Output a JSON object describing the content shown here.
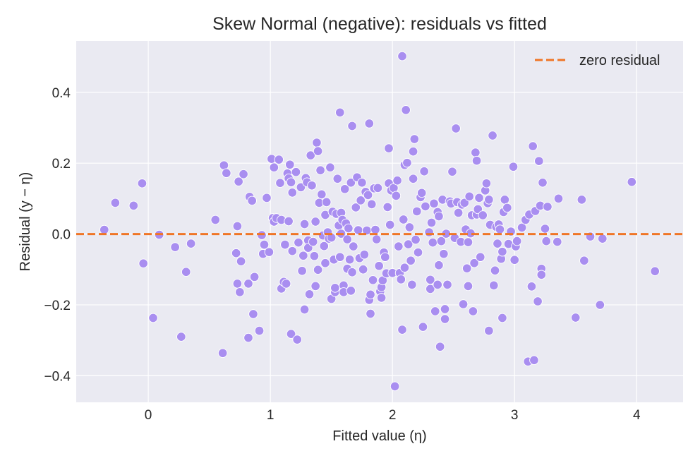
{
  "chart_data": {
    "type": "scatter",
    "title": "Skew Normal (negative): residuals vs fitted",
    "xlabel": "Fitted value (η)",
    "ylabel": "Residual (y − η)",
    "xlim": [
      -0.59,
      4.38
    ],
    "ylim": [
      -0.475,
      0.545
    ],
    "xticks": [
      0,
      1,
      2,
      3,
      4
    ],
    "xtick_labels": [
      "0",
      "1",
      "2",
      "3",
      "4"
    ],
    "yticks": [
      -0.4,
      -0.2,
      0.0,
      0.2,
      0.4
    ],
    "ytick_labels": [
      "−0.4",
      "−0.2",
      "0.0",
      "0.2",
      "0.4"
    ],
    "grid": true,
    "legend_position": "top-right",
    "reference_line": {
      "label": "zero residual",
      "y": 0.0,
      "style": "dashed",
      "color": "#f07526"
    },
    "point_color": "#a98ef0",
    "background_color": "#eaeaf2",
    "series": [
      {
        "points": [
          [
            -0.36,
            0.012
          ],
          [
            -0.27,
            0.088
          ],
          [
            -0.12,
            0.08
          ],
          [
            -0.05,
            0.143
          ],
          [
            -0.04,
            -0.083
          ],
          [
            0.04,
            -0.237
          ],
          [
            0.09,
            -0.002
          ],
          [
            0.22,
            -0.037
          ],
          [
            0.27,
            -0.29
          ],
          [
            0.31,
            -0.107
          ],
          [
            0.35,
            -0.027
          ],
          [
            0.55,
            0.04
          ],
          [
            0.61,
            -0.336
          ],
          [
            0.62,
            0.194
          ],
          [
            0.64,
            0.172
          ],
          [
            0.72,
            -0.054
          ],
          [
            0.73,
            0.022
          ],
          [
            0.73,
            -0.14
          ],
          [
            0.74,
            0.148
          ],
          [
            0.75,
            -0.164
          ],
          [
            0.76,
            -0.077
          ],
          [
            0.78,
            0.169
          ],
          [
            0.82,
            -0.14
          ],
          [
            0.82,
            -0.293
          ],
          [
            0.83,
            0.105
          ],
          [
            0.85,
            0.094
          ],
          [
            0.86,
            -0.226
          ],
          [
            0.87,
            -0.121
          ],
          [
            0.91,
            -0.273
          ],
          [
            0.93,
            -0.003
          ],
          [
            0.94,
            -0.056
          ],
          [
            0.95,
            -0.03
          ],
          [
            0.97,
            0.102
          ],
          [
            0.99,
            -0.051
          ],
          [
            1.01,
            0.212
          ],
          [
            1.02,
            0.045
          ],
          [
            1.03,
            0.035
          ],
          [
            1.03,
            0.188
          ],
          [
            1.05,
            0.045
          ],
          [
            1.07,
            0.21
          ],
          [
            1.08,
            0.144
          ],
          [
            1.09,
            0.04
          ],
          [
            1.09,
            -0.154
          ],
          [
            1.11,
            -0.135
          ],
          [
            1.12,
            -0.03
          ],
          [
            1.13,
            -0.14
          ],
          [
            1.14,
            0.171
          ],
          [
            1.15,
            0.036
          ],
          [
            1.15,
            0.157
          ],
          [
            1.16,
            0.196
          ],
          [
            1.17,
            0.146
          ],
          [
            1.17,
            -0.282
          ],
          [
            1.18,
            0.117
          ],
          [
            1.18,
            -0.048
          ],
          [
            1.21,
            0.175
          ],
          [
            1.22,
            -0.298
          ],
          [
            1.23,
            -0.024
          ],
          [
            1.25,
            0.132
          ],
          [
            1.26,
            -0.104
          ],
          [
            1.27,
            -0.061
          ],
          [
            1.28,
            0.028
          ],
          [
            1.28,
            -0.213
          ],
          [
            1.29,
            0.158
          ],
          [
            1.3,
            0.146
          ],
          [
            1.31,
            -0.018
          ],
          [
            1.31,
            -0.039
          ],
          [
            1.32,
            -0.17
          ],
          [
            1.33,
            0.222
          ],
          [
            1.34,
            0.137
          ],
          [
            1.35,
            -0.022
          ],
          [
            1.36,
            -0.062
          ],
          [
            1.37,
            -0.147
          ],
          [
            1.37,
            0.035
          ],
          [
            1.38,
            0.258
          ],
          [
            1.39,
            -0.101
          ],
          [
            1.39,
            0.234
          ],
          [
            1.4,
            0.088
          ],
          [
            1.41,
            0.18
          ],
          [
            1.42,
            0.112
          ],
          [
            1.43,
            -0.004
          ],
          [
            1.44,
            -0.034
          ],
          [
            1.45,
            -0.082
          ],
          [
            1.45,
            0.054
          ],
          [
            1.46,
            0.09
          ],
          [
            1.47,
            0.005
          ],
          [
            1.48,
            -0.013
          ],
          [
            1.49,
            0.188
          ],
          [
            1.5,
            -0.183
          ],
          [
            1.5,
            -0.01
          ],
          [
            1.51,
            0.063
          ],
          [
            1.52,
            -0.072
          ],
          [
            1.53,
            -0.164
          ],
          [
            1.53,
            -0.152
          ],
          [
            1.54,
            0.057
          ],
          [
            1.55,
            0.156
          ],
          [
            1.56,
            0.024
          ],
          [
            1.57,
            0.343
          ],
          [
            1.57,
            -0.065
          ],
          [
            1.58,
            0.06
          ],
          [
            1.58,
            0.001
          ],
          [
            1.59,
            0.04
          ],
          [
            1.6,
            -0.145
          ],
          [
            1.6,
            -0.164
          ],
          [
            1.61,
            0.127
          ],
          [
            1.62,
            0.03
          ],
          [
            1.63,
            -0.098
          ],
          [
            1.63,
            -0.015
          ],
          [
            1.64,
            0.016
          ],
          [
            1.65,
            -0.072
          ],
          [
            1.66,
            0.145
          ],
          [
            1.66,
            -0.16
          ],
          [
            1.67,
            0.305
          ],
          [
            1.67,
            -0.108
          ],
          [
            1.68,
            -0.035
          ],
          [
            1.7,
            0.075
          ],
          [
            1.71,
            0.16
          ],
          [
            1.72,
            0.011
          ],
          [
            1.73,
            -0.068
          ],
          [
            1.74,
            0.095
          ],
          [
            1.75,
            0.145
          ],
          [
            1.76,
            -0.1
          ],
          [
            1.77,
            -0.058
          ],
          [
            1.78,
            0.119
          ],
          [
            1.79,
            0.01
          ],
          [
            1.8,
            0.11
          ],
          [
            1.81,
            0.312
          ],
          [
            1.81,
            -0.186
          ],
          [
            1.82,
            -0.171
          ],
          [
            1.82,
            -0.225
          ],
          [
            1.83,
            0.084
          ],
          [
            1.84,
            -0.13
          ],
          [
            1.85,
            0.129
          ],
          [
            1.86,
            0.012
          ],
          [
            1.87,
            -0.015
          ],
          [
            1.88,
            0.13
          ],
          [
            1.89,
            -0.09
          ],
          [
            1.9,
            -0.162
          ],
          [
            1.91,
            -0.15
          ],
          [
            1.91,
            -0.18
          ],
          [
            1.92,
            -0.131
          ],
          [
            1.93,
            -0.052
          ],
          [
            1.94,
            -0.065
          ],
          [
            1.95,
            -0.111
          ],
          [
            1.96,
            0.076
          ],
          [
            1.97,
            0.242
          ],
          [
            1.97,
            0.143
          ],
          [
            1.98,
            0.026
          ],
          [
            1.99,
            0.123
          ],
          [
            2.0,
            -0.11
          ],
          [
            2.01,
            0.13
          ],
          [
            2.02,
            -0.43
          ],
          [
            2.03,
            0.108
          ],
          [
            2.04,
            0.151
          ],
          [
            2.05,
            -0.035
          ],
          [
            2.06,
            -0.11
          ],
          [
            2.07,
            -0.128
          ],
          [
            2.08,
            0.502
          ],
          [
            2.08,
            -0.27
          ],
          [
            2.09,
            0.041
          ],
          [
            2.1,
            0.195
          ],
          [
            2.1,
            -0.095
          ],
          [
            2.11,
            0.35
          ],
          [
            2.12,
            0.201
          ],
          [
            2.13,
            -0.029
          ],
          [
            2.14,
            0.019
          ],
          [
            2.15,
            -0.075
          ],
          [
            2.16,
            -0.143
          ],
          [
            2.17,
            0.156
          ],
          [
            2.17,
            0.233
          ],
          [
            2.18,
            0.268
          ],
          [
            2.19,
            -0.016
          ],
          [
            2.2,
            0.064
          ],
          [
            2.21,
            -0.052
          ],
          [
            2.23,
            0.104
          ],
          [
            2.24,
            0.116
          ],
          [
            2.25,
            -0.262
          ],
          [
            2.26,
            0.177
          ],
          [
            2.27,
            0.078
          ],
          [
            2.3,
            0.005
          ],
          [
            2.31,
            -0.129
          ],
          [
            2.31,
            -0.155
          ],
          [
            2.32,
            0.032
          ],
          [
            2.33,
            -0.024
          ],
          [
            2.34,
            0.086
          ],
          [
            2.35,
            -0.218
          ],
          [
            2.37,
            -0.143
          ],
          [
            2.37,
            0.062
          ],
          [
            2.38,
            0.05
          ],
          [
            2.38,
            -0.088
          ],
          [
            2.39,
            -0.318
          ],
          [
            2.4,
            -0.02
          ],
          [
            2.41,
            0.097
          ],
          [
            2.42,
            -0.056
          ],
          [
            2.43,
            -0.212
          ],
          [
            2.43,
            -0.24
          ],
          [
            2.44,
            0.001
          ],
          [
            2.45,
            -0.143
          ],
          [
            2.47,
            0.092
          ],
          [
            2.48,
            0.086
          ],
          [
            2.49,
            0.176
          ],
          [
            2.51,
            -0.011
          ],
          [
            2.52,
            0.298
          ],
          [
            2.53,
            0.09
          ],
          [
            2.54,
            0.06
          ],
          [
            2.56,
            -0.022
          ],
          [
            2.57,
            0.083
          ],
          [
            2.58,
            -0.198
          ],
          [
            2.59,
            0.088
          ],
          [
            2.6,
            0.013
          ],
          [
            2.61,
            -0.097
          ],
          [
            2.62,
            -0.023
          ],
          [
            2.62,
            -0.147
          ],
          [
            2.63,
            0.106
          ],
          [
            2.64,
            0.002
          ],
          [
            2.65,
            0.053
          ],
          [
            2.66,
            -0.218
          ],
          [
            2.67,
            -0.082
          ],
          [
            2.68,
            0.23
          ],
          [
            2.69,
            0.207
          ],
          [
            2.69,
            0.055
          ],
          [
            2.7,
            0.07
          ],
          [
            2.71,
            0.102
          ],
          [
            2.72,
            -0.065
          ],
          [
            2.74,
            0.053
          ],
          [
            2.76,
            0.123
          ],
          [
            2.77,
            0.143
          ],
          [
            2.78,
            0.087
          ],
          [
            2.79,
            -0.273
          ],
          [
            2.79,
            0.097
          ],
          [
            2.8,
            0.026
          ],
          [
            2.82,
            0.278
          ],
          [
            2.83,
            -0.145
          ],
          [
            2.84,
            -0.103
          ],
          [
            2.85,
            0.02
          ],
          [
            2.86,
            -0.027
          ],
          [
            2.87,
            0.027
          ],
          [
            2.88,
            0.013
          ],
          [
            2.89,
            -0.07
          ],
          [
            2.9,
            -0.237
          ],
          [
            2.9,
            -0.05
          ],
          [
            2.91,
            0.062
          ],
          [
            2.92,
            0.097
          ],
          [
            2.94,
            0.074
          ],
          [
            2.95,
            -0.028
          ],
          [
            2.97,
            0.007
          ],
          [
            2.99,
            0.19
          ],
          [
            3.0,
            -0.073
          ],
          [
            3.01,
            -0.035
          ],
          [
            3.02,
            -0.02
          ],
          [
            3.06,
            0.018
          ],
          [
            3.09,
            0.04
          ],
          [
            3.11,
            -0.36
          ],
          [
            3.12,
            0.055
          ],
          [
            3.14,
            -0.148
          ],
          [
            3.15,
            0.248
          ],
          [
            3.16,
            -0.356
          ],
          [
            3.17,
            0.065
          ],
          [
            3.19,
            -0.19
          ],
          [
            3.2,
            0.206
          ],
          [
            3.21,
            0.08
          ],
          [
            3.22,
            -0.098
          ],
          [
            3.22,
            -0.115
          ],
          [
            3.23,
            0.145
          ],
          [
            3.25,
            0.015
          ],
          [
            3.26,
            -0.02
          ],
          [
            3.27,
            0.077
          ],
          [
            3.35,
            -0.022
          ],
          [
            3.36,
            0.1
          ],
          [
            3.5,
            -0.236
          ],
          [
            3.55,
            0.097
          ],
          [
            3.57,
            -0.075
          ],
          [
            3.62,
            -0.007
          ],
          [
            3.7,
            -0.2
          ],
          [
            3.72,
            -0.013
          ],
          [
            3.96,
            0.147
          ],
          [
            4.15,
            -0.105
          ]
        ]
      }
    ]
  }
}
